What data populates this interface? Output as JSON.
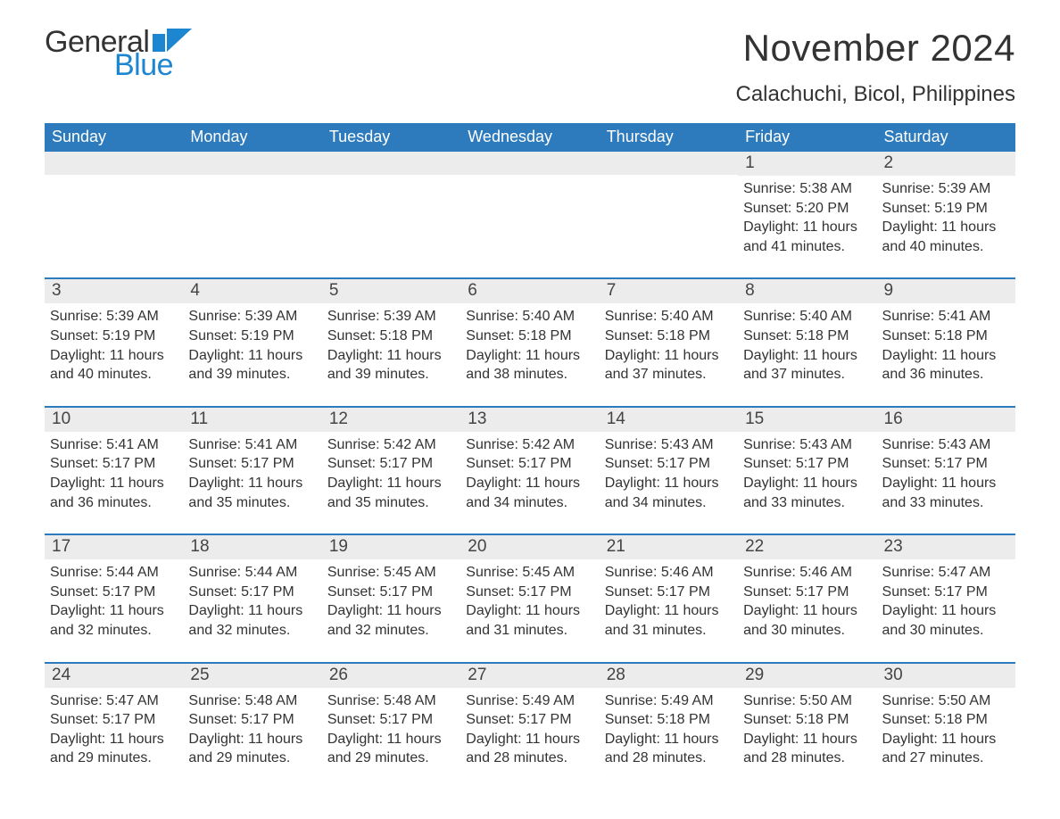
{
  "brand": {
    "part1": "General",
    "part2": "Blue",
    "flag_color": "#1d86d1"
  },
  "title": "November 2024",
  "location": "Calachuchi, Bicol, Philippines",
  "colors": {
    "header_bg": "#2d7bbd",
    "header_text": "#ffffff",
    "week_divider": "#2d7bbd",
    "daynum_bg": "#ececec",
    "text": "#333333",
    "background": "#ffffff"
  },
  "day_headers": [
    "Sunday",
    "Monday",
    "Tuesday",
    "Wednesday",
    "Thursday",
    "Friday",
    "Saturday"
  ],
  "weeks": [
    [
      {
        "empty": true
      },
      {
        "empty": true
      },
      {
        "empty": true
      },
      {
        "empty": true
      },
      {
        "empty": true
      },
      {
        "day": "1",
        "sunrise": "Sunrise: 5:38 AM",
        "sunset": "Sunset: 5:20 PM",
        "daylight": "Daylight: 11 hours and 41 minutes."
      },
      {
        "day": "2",
        "sunrise": "Sunrise: 5:39 AM",
        "sunset": "Sunset: 5:19 PM",
        "daylight": "Daylight: 11 hours and 40 minutes."
      }
    ],
    [
      {
        "day": "3",
        "sunrise": "Sunrise: 5:39 AM",
        "sunset": "Sunset: 5:19 PM",
        "daylight": "Daylight: 11 hours and 40 minutes."
      },
      {
        "day": "4",
        "sunrise": "Sunrise: 5:39 AM",
        "sunset": "Sunset: 5:19 PM",
        "daylight": "Daylight: 11 hours and 39 minutes."
      },
      {
        "day": "5",
        "sunrise": "Sunrise: 5:39 AM",
        "sunset": "Sunset: 5:18 PM",
        "daylight": "Daylight: 11 hours and 39 minutes."
      },
      {
        "day": "6",
        "sunrise": "Sunrise: 5:40 AM",
        "sunset": "Sunset: 5:18 PM",
        "daylight": "Daylight: 11 hours and 38 minutes."
      },
      {
        "day": "7",
        "sunrise": "Sunrise: 5:40 AM",
        "sunset": "Sunset: 5:18 PM",
        "daylight": "Daylight: 11 hours and 37 minutes."
      },
      {
        "day": "8",
        "sunrise": "Sunrise: 5:40 AM",
        "sunset": "Sunset: 5:18 PM",
        "daylight": "Daylight: 11 hours and 37 minutes."
      },
      {
        "day": "9",
        "sunrise": "Sunrise: 5:41 AM",
        "sunset": "Sunset: 5:18 PM",
        "daylight": "Daylight: 11 hours and 36 minutes."
      }
    ],
    [
      {
        "day": "10",
        "sunrise": "Sunrise: 5:41 AM",
        "sunset": "Sunset: 5:17 PM",
        "daylight": "Daylight: 11 hours and 36 minutes."
      },
      {
        "day": "11",
        "sunrise": "Sunrise: 5:41 AM",
        "sunset": "Sunset: 5:17 PM",
        "daylight": "Daylight: 11 hours and 35 minutes."
      },
      {
        "day": "12",
        "sunrise": "Sunrise: 5:42 AM",
        "sunset": "Sunset: 5:17 PM",
        "daylight": "Daylight: 11 hours and 35 minutes."
      },
      {
        "day": "13",
        "sunrise": "Sunrise: 5:42 AM",
        "sunset": "Sunset: 5:17 PM",
        "daylight": "Daylight: 11 hours and 34 minutes."
      },
      {
        "day": "14",
        "sunrise": "Sunrise: 5:43 AM",
        "sunset": "Sunset: 5:17 PM",
        "daylight": "Daylight: 11 hours and 34 minutes."
      },
      {
        "day": "15",
        "sunrise": "Sunrise: 5:43 AM",
        "sunset": "Sunset: 5:17 PM",
        "daylight": "Daylight: 11 hours and 33 minutes."
      },
      {
        "day": "16",
        "sunrise": "Sunrise: 5:43 AM",
        "sunset": "Sunset: 5:17 PM",
        "daylight": "Daylight: 11 hours and 33 minutes."
      }
    ],
    [
      {
        "day": "17",
        "sunrise": "Sunrise: 5:44 AM",
        "sunset": "Sunset: 5:17 PM",
        "daylight": "Daylight: 11 hours and 32 minutes."
      },
      {
        "day": "18",
        "sunrise": "Sunrise: 5:44 AM",
        "sunset": "Sunset: 5:17 PM",
        "daylight": "Daylight: 11 hours and 32 minutes."
      },
      {
        "day": "19",
        "sunrise": "Sunrise: 5:45 AM",
        "sunset": "Sunset: 5:17 PM",
        "daylight": "Daylight: 11 hours and 32 minutes."
      },
      {
        "day": "20",
        "sunrise": "Sunrise: 5:45 AM",
        "sunset": "Sunset: 5:17 PM",
        "daylight": "Daylight: 11 hours and 31 minutes."
      },
      {
        "day": "21",
        "sunrise": "Sunrise: 5:46 AM",
        "sunset": "Sunset: 5:17 PM",
        "daylight": "Daylight: 11 hours and 31 minutes."
      },
      {
        "day": "22",
        "sunrise": "Sunrise: 5:46 AM",
        "sunset": "Sunset: 5:17 PM",
        "daylight": "Daylight: 11 hours and 30 minutes."
      },
      {
        "day": "23",
        "sunrise": "Sunrise: 5:47 AM",
        "sunset": "Sunset: 5:17 PM",
        "daylight": "Daylight: 11 hours and 30 minutes."
      }
    ],
    [
      {
        "day": "24",
        "sunrise": "Sunrise: 5:47 AM",
        "sunset": "Sunset: 5:17 PM",
        "daylight": "Daylight: 11 hours and 29 minutes."
      },
      {
        "day": "25",
        "sunrise": "Sunrise: 5:48 AM",
        "sunset": "Sunset: 5:17 PM",
        "daylight": "Daylight: 11 hours and 29 minutes."
      },
      {
        "day": "26",
        "sunrise": "Sunrise: 5:48 AM",
        "sunset": "Sunset: 5:17 PM",
        "daylight": "Daylight: 11 hours and 29 minutes."
      },
      {
        "day": "27",
        "sunrise": "Sunrise: 5:49 AM",
        "sunset": "Sunset: 5:17 PM",
        "daylight": "Daylight: 11 hours and 28 minutes."
      },
      {
        "day": "28",
        "sunrise": "Sunrise: 5:49 AM",
        "sunset": "Sunset: 5:18 PM",
        "daylight": "Daylight: 11 hours and 28 minutes."
      },
      {
        "day": "29",
        "sunrise": "Sunrise: 5:50 AM",
        "sunset": "Sunset: 5:18 PM",
        "daylight": "Daylight: 11 hours and 28 minutes."
      },
      {
        "day": "30",
        "sunrise": "Sunrise: 5:50 AM",
        "sunset": "Sunset: 5:18 PM",
        "daylight": "Daylight: 11 hours and 27 minutes."
      }
    ]
  ]
}
